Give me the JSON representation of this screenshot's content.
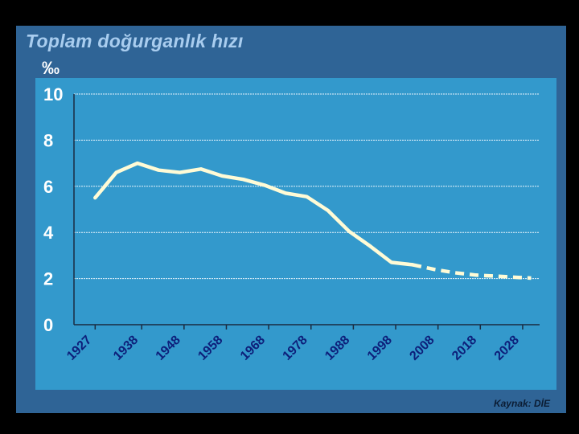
{
  "slide": {
    "title": "Toplam doğurganlık hızı",
    "unit": "‰",
    "source": "Kaynak: DİE",
    "colors": {
      "frame": "#000000",
      "slide_background": "#2f6496",
      "plot_background": "#3399cc",
      "title": "#a9cdef",
      "series_line": "#fffbd6",
      "gridline": "#e8f4fb",
      "x_tick_label": "#0d1f7a"
    }
  },
  "chart_data": {
    "type": "line",
    "title": "Toplam doğurganlık hızı",
    "ylabel": "‰",
    "ylim": [
      0,
      10
    ],
    "yticks": [
      0,
      2,
      4,
      6,
      8,
      10
    ],
    "xlim": [
      1922,
      2032
    ],
    "xticks": [
      1927,
      1938,
      1948,
      1958,
      1968,
      1978,
      1988,
      1998,
      2008,
      2018,
      2028
    ],
    "xticklabels": [
      "1927",
      "1938",
      "1948",
      "1958",
      "1968",
      "1978",
      "1988",
      "1998",
      "2008",
      "2018",
      "2028"
    ],
    "grid": true,
    "series": [
      {
        "style": "solid",
        "x": [
          1927,
          1932,
          1937,
          1942,
          1947,
          1952,
          1957,
          1962,
          1967,
          1972,
          1977,
          1982,
          1987,
          1992,
          1997,
          2002
        ],
        "y": [
          5.5,
          6.6,
          7.0,
          6.7,
          6.6,
          6.75,
          6.45,
          6.3,
          6.05,
          5.7,
          5.55,
          4.95,
          4.05,
          3.4,
          2.7,
          2.6
        ]
      },
      {
        "style": "dashed",
        "x": [
          2002,
          2007,
          2012,
          2017,
          2022,
          2027,
          2030
        ],
        "y": [
          2.6,
          2.4,
          2.25,
          2.15,
          2.1,
          2.05,
          2.02
        ]
      }
    ]
  }
}
